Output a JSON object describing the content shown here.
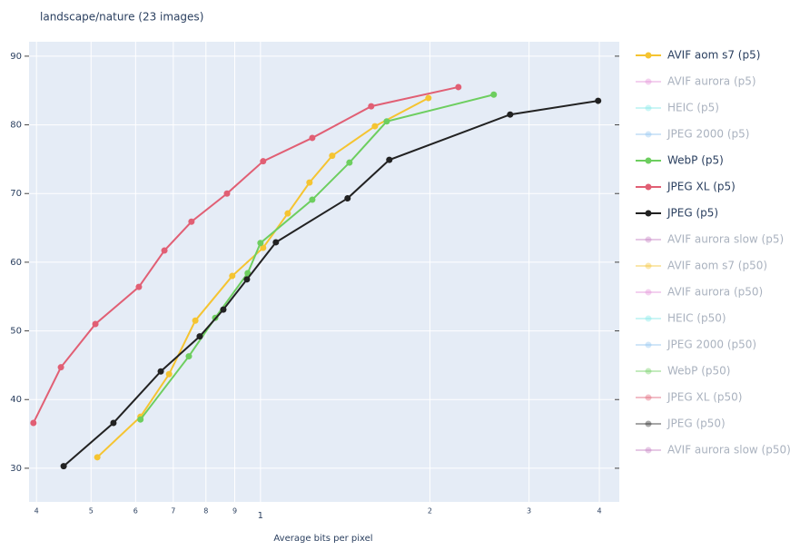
{
  "chart_data": {
    "type": "line",
    "title": "landscape/nature (23 images)",
    "x_label": "Average bits per pixel",
    "xlog": true,
    "grid": true,
    "xlim": [
      0.388,
      4.34
    ],
    "ylim": [
      25.1,
      92.1
    ],
    "xticks": [
      {
        "value": 0.4,
        "label": "4"
      },
      {
        "value": 0.5,
        "label": "5"
      },
      {
        "value": 0.6,
        "label": "6"
      },
      {
        "value": 0.7,
        "label": "7"
      },
      {
        "value": 0.8,
        "label": "8"
      },
      {
        "value": 0.9,
        "label": "9"
      },
      1,
      {
        "value": 2,
        "label": "2"
      },
      {
        "value": 3,
        "label": "3"
      },
      {
        "value": 4,
        "label": "4"
      }
    ],
    "yticks": [
      30,
      40,
      50,
      60,
      70,
      80,
      90
    ],
    "series": [
      {
        "name": "AVIF aom s7 (p5)",
        "color": "#f5c431",
        "x": [
          0.513,
          0.612,
          0.688,
          0.766,
          0.891,
          1.011,
          1.118,
          1.222,
          1.341,
          1.597,
          1.988
        ],
        "values": [
          31.6,
          37.5,
          43.7,
          51.5,
          58.0,
          62.1,
          67.1,
          71.6,
          75.5,
          79.8,
          83.9
        ]
      },
      {
        "name": "AVIF aurora (p5)",
        "color": "#e38fd8",
        "visible": "legendonly"
      },
      {
        "name": "HEIC (p5)",
        "color": "#7ee8e8",
        "visible": "legendonly"
      },
      {
        "name": "JPEG 2000 (p5)",
        "color": "#8fc3ef",
        "visible": "legendonly"
      },
      {
        "name": "WebP (p5)",
        "color": "#6dce5f",
        "x": [
          0.612,
          0.746,
          0.831,
          0.949,
          1.0,
          1.236,
          1.439,
          1.676,
          2.597
        ],
        "values": [
          37.1,
          46.3,
          51.9,
          58.4,
          62.8,
          69.1,
          74.5,
          80.5,
          84.4
        ]
      },
      {
        "name": "JPEG XL (p5)",
        "color": "#e15f74",
        "x": [
          0.395,
          0.442,
          0.509,
          0.608,
          0.675,
          0.754,
          0.872,
          1.011,
          1.236,
          1.573,
          2.247
        ],
        "values": [
          36.6,
          44.7,
          51.0,
          56.4,
          61.7,
          65.9,
          70.0,
          74.7,
          78.1,
          82.7,
          85.5
        ]
      },
      {
        "name": "JPEG (p5)",
        "color": "#222222",
        "x": [
          0.447,
          0.548,
          0.665,
          0.78,
          0.859,
          0.946,
          1.065,
          1.428,
          1.694,
          2.777,
          3.98
        ],
        "values": [
          30.3,
          36.6,
          44.1,
          49.2,
          53.1,
          57.5,
          62.9,
          69.3,
          74.9,
          81.5,
          83.5
        ]
      },
      {
        "name": "AVIF aurora slow (p5)",
        "color": "#c27bc0",
        "visible": "legendonly"
      },
      {
        "name": "AVIF aom s7 (p50)",
        "color": "#f5c431",
        "visible": "legendonly"
      },
      {
        "name": "AVIF aurora (p50)",
        "color": "#e38fd8",
        "visible": "legendonly"
      },
      {
        "name": "HEIC (p50)",
        "color": "#7ee8e8",
        "visible": "legendonly"
      },
      {
        "name": "JPEG 2000 (p50)",
        "color": "#8fc3ef",
        "visible": "legendonly"
      },
      {
        "name": "WebP (p50)",
        "color": "#6dce5f",
        "visible": "legendonly"
      },
      {
        "name": "JPEG XL (p50)",
        "color": "#e15f74",
        "visible": "legendonly"
      },
      {
        "name": "JPEG (p50)",
        "color": "#222222",
        "visible": "legendonly"
      },
      {
        "name": "AVIF aurora slow (p50)",
        "color": "#c27bc0",
        "visible": "legendonly"
      }
    ]
  }
}
